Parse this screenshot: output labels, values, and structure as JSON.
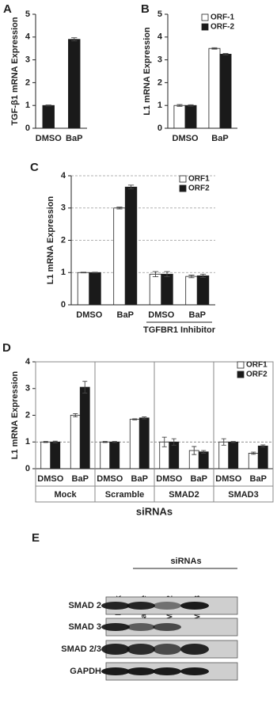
{
  "chart_data": [
    {
      "type": "bar",
      "panel": "A",
      "ylabel": "TGF-β1 mRNA Expression",
      "categories": [
        "DMSO",
        "BaP"
      ],
      "values": [
        1,
        3.9
      ],
      "errors": [
        0.02,
        0.07
      ],
      "color": "#1a1a1a",
      "ylim": [
        0,
        5
      ],
      "yticks": [
        0,
        1,
        2,
        3,
        4,
        5
      ]
    },
    {
      "type": "bar",
      "panel": "B",
      "ylabel": "L1 mRNA  Expression",
      "categories": [
        "DMSO",
        "BaP"
      ],
      "series": [
        {
          "name": "ORF-1",
          "color": "#ffffff",
          "values": [
            1,
            3.5
          ],
          "errors": [
            0.04,
            0.03
          ]
        },
        {
          "name": "ORF-2",
          "color": "#1a1a1a",
          "values": [
            1,
            3.25
          ],
          "errors": [
            0.03,
            0.03
          ]
        }
      ],
      "ylim": [
        0,
        5
      ],
      "yticks": [
        0,
        1,
        2,
        3,
        4,
        5
      ],
      "legend": "upper right"
    },
    {
      "type": "bar",
      "panel": "C",
      "ylabel": "L1 mRNA  Expression",
      "categories": [
        "DMSO",
        "BaP",
        "DMSO",
        "BaP"
      ],
      "group_labels": [
        null,
        "TGFBR1 Inhibitor"
      ],
      "series": [
        {
          "name": "ORF1",
          "color": "#ffffff",
          "values": [
            1,
            3.0,
            0.95,
            0.88
          ],
          "errors": [
            0.01,
            0.03,
            0.08,
            0.04
          ]
        },
        {
          "name": "ORF2",
          "color": "#1a1a1a",
          "values": [
            1,
            3.65,
            0.95,
            0.9
          ],
          "errors": [
            0.01,
            0.06,
            0.08,
            0.05
          ]
        }
      ],
      "ylim": [
        0,
        4
      ],
      "yticks": [
        0,
        1,
        2,
        3,
        4
      ],
      "grid": true,
      "legend": "upper right"
    },
    {
      "type": "bar",
      "panel": "D",
      "ylabel": "L1 mRNA  Expression",
      "xlabel": "siRNAs",
      "categories": [
        "DMSO",
        "BaP",
        "DMSO",
        "BaP",
        "DMSO",
        "BaP",
        "DMSO",
        "BaP"
      ],
      "group_labels": [
        "Mock",
        "Scramble",
        "SMAD2",
        "SMAD3"
      ],
      "series": [
        {
          "name": "ORF1",
          "color": "#ffffff",
          "values": [
            1,
            2.0,
            1.0,
            1.85,
            1.0,
            0.68,
            1.0,
            0.58
          ],
          "errors": [
            0.02,
            0.06,
            0.02,
            0.02,
            0.18,
            0.15,
            0.12,
            0.04
          ]
        },
        {
          "name": "ORF2",
          "color": "#1a1a1a",
          "values": [
            1,
            3.05,
            1.0,
            1.9,
            1.0,
            0.63,
            1.0,
            0.85
          ],
          "errors": [
            0.03,
            0.22,
            0.02,
            0.04,
            0.12,
            0.05,
            0.02,
            0.04
          ]
        }
      ],
      "ylim": [
        0,
        4
      ],
      "yticks": [
        0,
        1,
        2,
        3,
        4
      ],
      "refline": 1,
      "legend": "upper right"
    }
  ],
  "blot": {
    "panel": "E",
    "header": "siRNAs",
    "lanes": [
      "Mock",
      "Scramble",
      "SMAD 2",
      "SMAD 3"
    ],
    "rows": [
      "SMAD 2",
      "SMAD 3",
      "SMAD 2/3",
      "GAPDH"
    ]
  }
}
